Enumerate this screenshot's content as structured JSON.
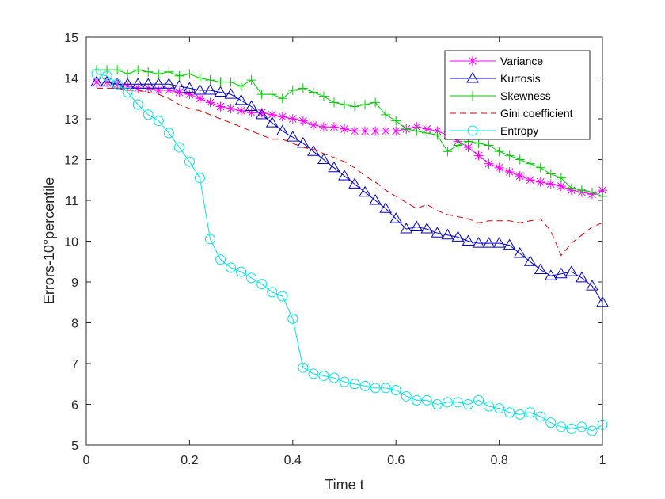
{
  "chart_data": {
    "type": "line",
    "title": "",
    "xlabel": "Time t",
    "ylabel": "Errors-10°percentile",
    "xlim": [
      0,
      1
    ],
    "ylim": [
      5,
      15
    ],
    "xticks": [
      0,
      0.2,
      0.4,
      0.6,
      0.8,
      1
    ],
    "xtick_labels": [
      "0",
      "0.2",
      "0.4",
      "0.6",
      "0.8",
      "1"
    ],
    "yticks": [
      5,
      6,
      7,
      8,
      9,
      10,
      11,
      12,
      13,
      14,
      15
    ],
    "ytick_labels": [
      "5",
      "6",
      "7",
      "8",
      "9",
      "10",
      "11",
      "12",
      "13",
      "14",
      "15"
    ],
    "grid": false,
    "legend_position": "top-right",
    "x": [
      0.02,
      0.04,
      0.06,
      0.08,
      0.1,
      0.12,
      0.14,
      0.16,
      0.18,
      0.2,
      0.22,
      0.24,
      0.26,
      0.28,
      0.3,
      0.32,
      0.34,
      0.36,
      0.38,
      0.4,
      0.42,
      0.44,
      0.46,
      0.48,
      0.5,
      0.52,
      0.54,
      0.56,
      0.58,
      0.6,
      0.62,
      0.64,
      0.66,
      0.68,
      0.7,
      0.72,
      0.74,
      0.76,
      0.78,
      0.8,
      0.82,
      0.84,
      0.86,
      0.88,
      0.9,
      0.92,
      0.94,
      0.96,
      0.98,
      1.0
    ],
    "series": [
      {
        "name": "Variance",
        "color": "#ff00ff",
        "marker": "asterisk",
        "linestyle": "solid",
        "values": [
          13.9,
          13.9,
          13.85,
          13.8,
          13.75,
          13.75,
          13.7,
          13.7,
          13.65,
          13.6,
          13.5,
          13.4,
          13.3,
          13.25,
          13.2,
          13.15,
          13.15,
          13.1,
          13.05,
          13.0,
          12.95,
          12.85,
          12.8,
          12.8,
          12.75,
          12.7,
          12.7,
          12.7,
          12.7,
          12.7,
          12.75,
          12.8,
          12.75,
          12.7,
          12.6,
          12.45,
          12.3,
          12.1,
          11.9,
          11.8,
          11.7,
          11.6,
          11.5,
          11.45,
          11.4,
          11.35,
          11.25,
          11.2,
          11.15,
          11.25
        ]
      },
      {
        "name": "Kurtosis",
        "color": "#0000cc",
        "marker": "triangle",
        "linestyle": "solid",
        "values": [
          13.9,
          13.9,
          13.85,
          13.85,
          13.85,
          13.85,
          13.85,
          13.85,
          13.8,
          13.75,
          13.7,
          13.7,
          13.65,
          13.6,
          13.45,
          13.3,
          13.1,
          12.9,
          12.7,
          12.55,
          12.4,
          12.2,
          12.0,
          11.8,
          11.6,
          11.4,
          11.2,
          11.0,
          10.8,
          10.55,
          10.3,
          10.35,
          10.3,
          10.2,
          10.15,
          10.1,
          10.0,
          9.95,
          9.95,
          9.95,
          9.9,
          9.7,
          9.5,
          9.3,
          9.15,
          9.2,
          9.25,
          9.1,
          8.9,
          8.5
        ]
      },
      {
        "name": "Skewness",
        "color": "#00cc00",
        "marker": "plus",
        "linestyle": "solid",
        "values": [
          14.2,
          14.2,
          14.2,
          14.1,
          14.2,
          14.15,
          14.1,
          14.15,
          14.05,
          14.1,
          14.0,
          13.95,
          13.9,
          13.9,
          13.8,
          13.95,
          13.6,
          13.6,
          13.5,
          13.7,
          13.75,
          13.65,
          13.55,
          13.4,
          13.35,
          13.3,
          13.35,
          13.4,
          13.1,
          12.95,
          12.75,
          12.7,
          12.65,
          12.6,
          12.2,
          12.35,
          12.45,
          12.4,
          12.35,
          12.2,
          12.1,
          12.0,
          11.9,
          11.8,
          11.65,
          11.55,
          11.3,
          11.25,
          11.2,
          11.1
        ]
      },
      {
        "name": "Gini coefficient",
        "color": "#dd0000",
        "marker": "none",
        "linestyle": "dashed",
        "values": [
          13.75,
          13.75,
          13.75,
          13.7,
          13.7,
          13.65,
          13.6,
          13.5,
          13.35,
          13.25,
          13.2,
          13.1,
          13.0,
          12.9,
          12.8,
          12.7,
          12.6,
          12.5,
          12.5,
          12.4,
          12.3,
          12.25,
          12.15,
          12.05,
          11.95,
          11.8,
          11.6,
          11.45,
          11.25,
          11.1,
          10.95,
          10.8,
          10.9,
          10.75,
          10.65,
          10.6,
          10.55,
          10.45,
          10.5,
          10.5,
          10.5,
          10.45,
          10.5,
          10.55,
          10.25,
          9.65,
          9.95,
          10.15,
          10.35,
          10.45
        ]
      },
      {
        "name": "Entropy",
        "color": "#00e5e5",
        "marker": "circle",
        "linestyle": "solid",
        "values": [
          14.1,
          14.05,
          13.85,
          13.65,
          13.35,
          13.1,
          12.95,
          12.65,
          12.3,
          11.95,
          11.55,
          10.05,
          9.55,
          9.35,
          9.25,
          9.1,
          8.95,
          8.75,
          8.65,
          8.1,
          6.9,
          6.75,
          6.7,
          6.65,
          6.55,
          6.5,
          6.45,
          6.4,
          6.4,
          6.35,
          6.2,
          6.1,
          6.1,
          6.0,
          6.05,
          6.05,
          6.0,
          6.1,
          5.95,
          5.9,
          5.8,
          5.75,
          5.8,
          5.7,
          5.55,
          5.45,
          5.4,
          5.45,
          5.35,
          5.5
        ]
      }
    ]
  }
}
